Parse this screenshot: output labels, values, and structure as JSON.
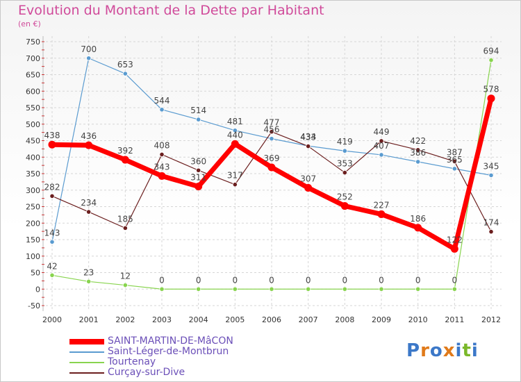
{
  "title": "Evolution du Montant de la Dette par Habitant",
  "subtitle": "(en €)",
  "logo": {
    "letters": [
      "P",
      "r",
      "o",
      "x",
      "i",
      "t",
      "i"
    ],
    "colors": [
      "#3c78c8",
      "#e07a1a",
      "#3c78c8",
      "#e07a1a",
      "#3c78c8",
      "#7ab82a",
      "#3c78c8"
    ]
  },
  "chart_data": {
    "type": "line",
    "title": "Evolution du Montant de la Dette par Habitant",
    "x": [
      "2000",
      "2001",
      "2002",
      "2003",
      "2004",
      "2005",
      "2006",
      "2007",
      "2008",
      "2009",
      "2010",
      "2011",
      "2012"
    ],
    "ylim": [
      -50,
      750
    ],
    "yticks": [
      -50,
      0,
      50,
      100,
      150,
      200,
      250,
      300,
      350,
      400,
      450,
      500,
      550,
      600,
      650,
      700,
      750
    ],
    "grid": true,
    "legend_position": "bottom-left",
    "series": [
      {
        "name": "SAINT-MARTIN-DE-MâCON",
        "color": "#ff0000",
        "width": 7,
        "values": [
          438,
          436,
          392,
          343,
          311,
          440,
          369,
          307,
          252,
          227,
          186,
          122,
          578
        ]
      },
      {
        "name": "Saint-Léger-de-Montbrun",
        "color": "#5a9bd0",
        "width": 1.2,
        "values": [
          143,
          700,
          653,
          544,
          514,
          481,
          456,
          434,
          419,
          407,
          386,
          365,
          345
        ]
      },
      {
        "name": "Tourtenay",
        "color": "#88d44e",
        "width": 1.2,
        "values": [
          42,
          23,
          12,
          0,
          0,
          0,
          0,
          0,
          0,
          0,
          0,
          0,
          694
        ]
      },
      {
        "name": "Curçay-sur-Dive",
        "color": "#6b1e1e",
        "width": 1.2,
        "values": [
          282,
          234,
          185,
          408,
          360,
          317,
          477,
          433,
          353,
          449,
          422,
          387,
          174
        ]
      }
    ]
  }
}
